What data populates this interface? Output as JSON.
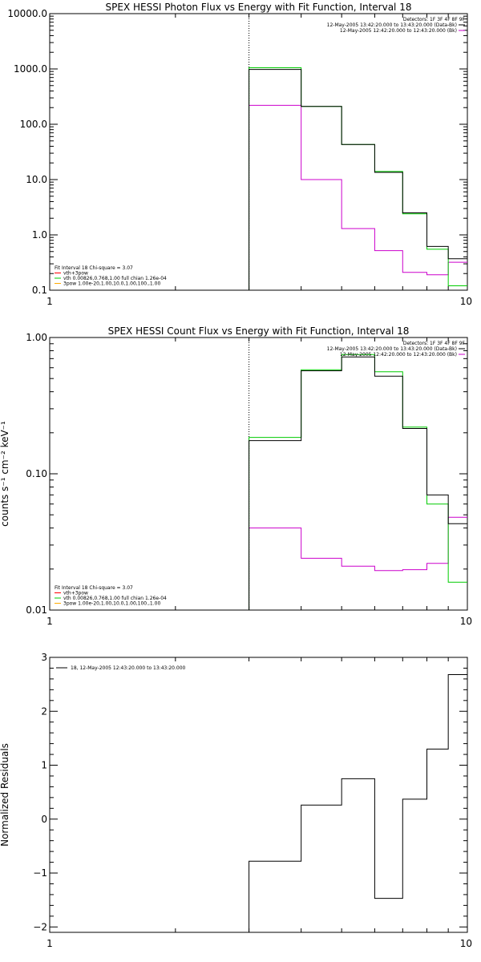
{
  "chart_data": [
    {
      "id": "photon",
      "type": "line",
      "title": "SPEX HESSI Photon Flux vs Energy with Fit Function, Interval 18",
      "xlabel": "",
      "ylabel": "",
      "xscale": "log",
      "yscale": "log",
      "xlim": [
        1,
        10
      ],
      "ylim": [
        0.1,
        10000.0
      ],
      "xticks": [
        "1",
        "10"
      ],
      "yticks": [
        {
          "v": 0.1,
          "label": "0.1"
        },
        {
          "v": 1,
          "label": "1.0"
        },
        {
          "v": 10,
          "label": "10.0"
        },
        {
          "v": 100,
          "label": "100.0"
        },
        {
          "v": 1000,
          "label": "1000.0"
        },
        {
          "v": 10000,
          "label": "10000.0"
        }
      ],
      "vline_x": 3,
      "info_lines": [
        "Detectors: 1F 3F 4F 8F 9F",
        "12-May-2005 13:42:20.000 to 13:43:20.000 (Data-Bk)",
        "12-May-2005 12:42:20.000 to 12:43:20.000 (Bk)"
      ],
      "legend_lines": [
        "Fit Interval 18   Chi-square = 3.07",
        "vth+3pow",
        "vth 0.00826,0.768,1.00  full chian 1.26e-04",
        "3pow 1.00e-20,1.00,10.0,1.00,100.,1.00"
      ],
      "colors": {
        "data": "#000000",
        "fit": "#00cc00",
        "bk": "#cc00cc",
        "vth": "#ff0000",
        "pow": "#ffaa00"
      },
      "edges": [
        3,
        4,
        5,
        6,
        7,
        8,
        9,
        10
      ],
      "series": [
        {
          "role": "data",
          "values": [
            980,
            210,
            43,
            13.5,
            2.5,
            0.62,
            0.37
          ]
        },
        {
          "role": "fit",
          "values": [
            1050,
            210,
            43,
            14.0,
            2.4,
            0.55,
            0.12
          ]
        },
        {
          "role": "bk",
          "values": [
            220,
            10,
            1.3,
            0.52,
            0.21,
            0.19,
            0.32
          ]
        }
      ]
    },
    {
      "id": "count",
      "type": "line",
      "title": "SPEX HESSI Count Flux vs Energy with Fit Function, Interval 18",
      "xlabel": "",
      "ylabel": "counts s⁻¹ cm⁻² keV⁻¹",
      "xscale": "log",
      "yscale": "log",
      "xlim": [
        1,
        10
      ],
      "ylim": [
        0.01,
        1.0
      ],
      "xticks": [
        "1",
        "10"
      ],
      "yticks": [
        {
          "v": 0.01,
          "label": "0.01"
        },
        {
          "v": 0.1,
          "label": "0.10"
        },
        {
          "v": 1,
          "label": "1.00"
        }
      ],
      "vline_x": 3,
      "info_lines": [
        "Detectors: 1F 3F 4F 8F 9F",
        "12-May-2005 13:42:20.000 to 13:43:20.000 (Data-Bk)",
        "12-May-2005 12:42:20.000 to 12:43:20.000 (Bk)"
      ],
      "legend_lines": [
        "Fit Interval 18   Chi-square = 3.07",
        "vth+3pow",
        "vth 0.00826,0.768,1.00  full chian 1.26e-04",
        "3pow 1.00e-20,1.00,10.0,1.00,100.,1.00"
      ],
      "colors": {
        "data": "#000000",
        "fit": "#00cc00",
        "bk": "#cc00cc",
        "vth": "#ff0000",
        "pow": "#ffaa00"
      },
      "edges": [
        3,
        4,
        5,
        6,
        7,
        8,
        9,
        10
      ],
      "series": [
        {
          "role": "data",
          "values": [
            0.175,
            0.57,
            0.72,
            0.52,
            0.215,
            0.07,
            0.043
          ]
        },
        {
          "role": "fit",
          "values": [
            0.185,
            0.58,
            0.75,
            0.56,
            0.22,
            0.06,
            0.016
          ]
        },
        {
          "role": "bk",
          "values": [
            0.04,
            0.024,
            0.021,
            0.0195,
            0.0198,
            0.022,
            0.048
          ]
        }
      ]
    },
    {
      "id": "resid",
      "type": "line",
      "title": "",
      "xlabel": "",
      "ylabel": "Normalized Residuals",
      "xscale": "log",
      "yscale": "linear",
      "xlim": [
        1,
        10
      ],
      "ylim": [
        -2.1,
        3.0
      ],
      "xticks": [
        "1",
        "10"
      ],
      "yticks": [
        {
          "v": -2,
          "label": "−2"
        },
        {
          "v": -1,
          "label": "−1"
        },
        {
          "v": 0,
          "label": "0"
        },
        {
          "v": 1,
          "label": "1"
        },
        {
          "v": 2,
          "label": "2"
        },
        {
          "v": 3,
          "label": "3"
        }
      ],
      "legend_lines": [
        "18, 12-May-2005 12:43:20.000 to 13:43:20.000"
      ],
      "colors": {
        "data": "#000000"
      },
      "edges": [
        3,
        4,
        5,
        6,
        7,
        8,
        9,
        10
      ],
      "series": [
        {
          "role": "data",
          "values": [
            -0.78,
            0.26,
            0.75,
            -1.47,
            0.37,
            1.3,
            2.68
          ]
        }
      ]
    }
  ]
}
